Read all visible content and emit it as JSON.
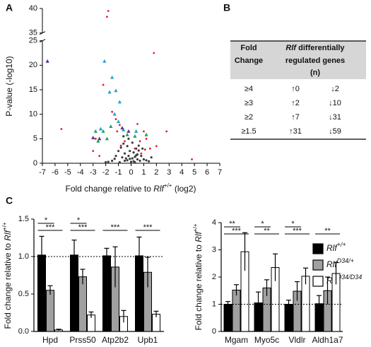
{
  "panel_labels": [
    "A",
    "B",
    "C"
  ],
  "chart_data": [
    {
      "type": "scatter",
      "ylabel": "P-value (-log10)",
      "xlabel_parts": [
        "Fold change relative to ",
        "Rlf",
        "+/+",
        " (log2)"
      ],
      "xlim": [
        -7,
        7
      ],
      "xticks": [
        -7,
        -6,
        -5,
        -4,
        -3,
        -2,
        -1,
        0,
        1,
        2,
        3,
        4,
        5,
        6,
        7
      ],
      "ylim": [
        0,
        40
      ],
      "ybreak": [
        25,
        35
      ],
      "yticks": [
        0,
        5,
        10,
        15,
        20,
        25,
        35,
        40
      ],
      "series": [
        {
          "color": "#3c3c3c",
          "marker": "circle",
          "x": [
            -1.5,
            -1.2,
            -1.0,
            -0.8,
            -0.6,
            -0.5,
            -0.4,
            -0.3,
            -0.2,
            -0.1,
            0,
            0.1,
            0.2,
            0.3,
            0.4,
            0.5,
            0.6,
            0.8,
            1.0,
            1.2,
            1.4,
            -1.8,
            -0.7,
            -0.3,
            0.2,
            0.5,
            -0.9,
            0.7,
            -0.2,
            0.1,
            -0.5,
            0.3,
            -1.3,
            0.9,
            -0.1,
            0.4,
            -2.0,
            1.6,
            -0.6,
            0.6
          ],
          "y": [
            0.5,
            1.5,
            2.5,
            3.2,
            4.0,
            2.0,
            1.0,
            3.5,
            5.0,
            2.5,
            0.3,
            4.2,
            2.2,
            1.3,
            3.0,
            0.8,
            2.6,
            1.5,
            0.8,
            0.6,
            0.4,
            0.3,
            1.2,
            0.6,
            0.4,
            1.8,
            0.2,
            0.5,
            1.5,
            1.0,
            0.5,
            0.2,
            0.9,
            3.0,
            0.9,
            1.6,
            0.2,
            1.2,
            5.5,
            3.6
          ]
        },
        {
          "color": "#e3202a",
          "marker": "circle",
          "x": [
            -1.8,
            -1.9,
            1.8,
            -5.5,
            -2.2,
            -1.5,
            -1.2,
            -0.9,
            -1.1,
            0.5,
            1.0,
            1.2,
            2.0,
            2.8,
            -2.5,
            -3.0,
            0.3,
            0.7,
            1.5,
            -0.5,
            0.8,
            1.1,
            -0.8,
            4.8,
            -2.8
          ],
          "y": [
            39.5,
            38.3,
            22.5,
            7,
            16,
            10.5,
            9,
            7.8,
            6.5,
            8,
            6.5,
            5,
            3.5,
            6.5,
            1.5,
            2.5,
            3,
            4.5,
            3,
            4.5,
            2,
            2.8,
            3.6,
            0.8,
            5
          ]
        },
        {
          "color": "#2a9fd8",
          "marker": "triangle",
          "x": [
            -2.1,
            -1.5,
            -1.2,
            -1.7,
            -0.9,
            -1.3,
            -2.4,
            -0.6,
            0.4,
            -1.0
          ],
          "y": [
            20.8,
            17.5,
            14.8,
            14.5,
            12.5,
            10,
            7,
            6.8,
            6.5,
            8.5
          ]
        },
        {
          "color": "#19a85b",
          "marker": "triangle",
          "x": [
            -2.8,
            -2.2,
            -1.9,
            -0.3,
            0.3,
            1.2,
            -2.6,
            -1.6
          ],
          "y": [
            6.5,
            6.5,
            5,
            5.8,
            5.5,
            5.8,
            4.5,
            7.5
          ]
        },
        {
          "color": "#6a2a8a",
          "marker": "triangle",
          "x": [
            -6.6,
            -2.5,
            -0.7,
            -0.2,
            -3.0
          ],
          "y": [
            20.8,
            5,
            7.2,
            6.5,
            5.2
          ]
        }
      ]
    },
    {
      "type": "bar",
      "ylabel_parts": [
        "Fold change relative to ",
        "Rlf",
        "+/+"
      ],
      "categories": [
        "Hpd",
        "Prss50",
        "Atp2b2",
        "Upb1"
      ],
      "ylim": [
        0,
        1.5
      ],
      "yticks": [
        {
          "value": 0,
          "label": "0.0"
        },
        {
          "value": 0.5,
          "label": "0.5"
        },
        {
          "value": 1,
          "label": "1.0"
        },
        {
          "value": 1.5,
          "label": "1.5"
        }
      ],
      "refline": 1,
      "series": [
        {
          "color": "#000000",
          "values": [
            1.02,
            1.02,
            1.01,
            1.01
          ],
          "errors": [
            0.25,
            0.2,
            0.1,
            0.25
          ]
        },
        {
          "color": "#a0a0a0",
          "values": [
            0.55,
            0.73,
            0.86,
            0.79
          ],
          "errors": [
            0.06,
            0.1,
            0.27,
            0.2
          ]
        },
        {
          "color": "#ffffff",
          "values": [
            0.02,
            0.22,
            0.2,
            0.23
          ],
          "errors": [
            0.01,
            0.04,
            0.08,
            0.04
          ]
        }
      ],
      "significance": [
        [
          "*",
          "***"
        ],
        [
          "*",
          "***"
        ],
        [
          null,
          "***"
        ],
        [
          null,
          "***"
        ]
      ]
    },
    {
      "type": "bar",
      "ylabel_parts": [
        "Fold change relative to ",
        "Rlf",
        "+/+"
      ],
      "categories": [
        "Mgam",
        "Myo5c",
        "Vldlr",
        "Aldh1a7"
      ],
      "ylim": [
        0,
        4
      ],
      "yticks": [
        0,
        1,
        2,
        3,
        4
      ],
      "refline": 1,
      "series": [
        {
          "name": "Rlf",
          "name_sup": "+/+",
          "color": "#000000",
          "values": [
            1.0,
            1.05,
            1.0,
            1.02
          ],
          "errors": [
            0.1,
            0.4,
            0.15,
            0.3
          ]
        },
        {
          "name": "Rlf",
          "name_sup": "D34/+",
          "color": "#a0a0a0",
          "values": [
            1.52,
            1.6,
            1.48,
            1.5
          ],
          "errors": [
            0.2,
            0.3,
            0.35,
            0.5
          ]
        },
        {
          "name": "Rlf",
          "name_sup": "D34/D34",
          "color": "#ffffff",
          "values": [
            2.93,
            2.35,
            2.03,
            2.13
          ],
          "errors": [
            0.7,
            0.5,
            0.3,
            0.4
          ]
        }
      ],
      "significance": [
        [
          "**",
          "***"
        ],
        [
          "*",
          "**"
        ],
        [
          "*",
          "***"
        ],
        [
          null,
          "**"
        ]
      ]
    }
  ],
  "table": {
    "header": [
      [
        "Fold",
        "Change"
      ],
      [
        [
          "Rlf",
          " differentially"
        ],
        "regulated genes",
        "(n)"
      ]
    ],
    "rows": [
      [
        "≥4",
        "↑0",
        "↓2"
      ],
      [
        "≥3",
        "↑2",
        "↓10"
      ],
      [
        "≥2",
        "↑7",
        "↓31"
      ],
      [
        "≥1.5",
        "↑31",
        "↓59"
      ]
    ]
  }
}
